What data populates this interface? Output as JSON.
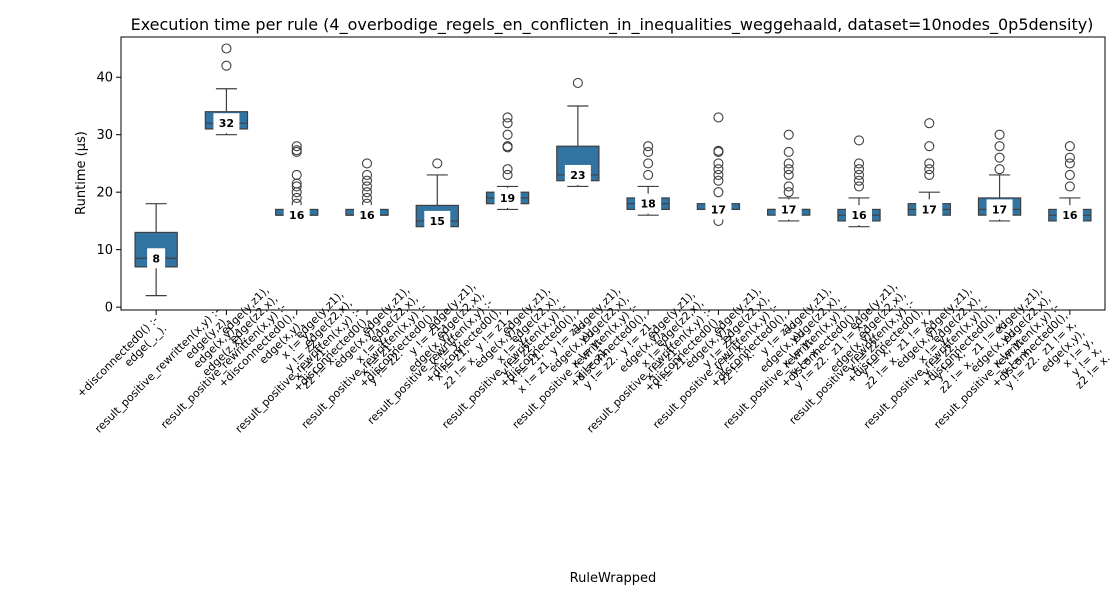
{
  "chart_data": {
    "type": "box",
    "title": "Execution time per rule (4_overbodige_regels_en_conflicten_in_inequalities_weggehaald, dataset=10nodes_0p5density)",
    "xlabel": "RuleWrapped",
    "ylabel": "Runtime (μs)",
    "ylim": [
      -0.5,
      47
    ],
    "yticks": [
      0,
      10,
      20,
      30,
      40
    ],
    "grid": false,
    "categories": [
      [
        "+disconnected0() :-",
        "edge(_,_)."
      ],
      [
        "result_positive_rewritten(x,y) :-",
        "edge(y,z),",
        "edge(x,y),",
        "edge(z,x)."
      ],
      [
        "edge(y,z1),",
        "edge(z2,x),",
        "result_positive_rewritten(x,y) :-",
        "+disconnected0(),",
        "edge(x,y),",
        "x != y,",
        "y != z2,",
        "x != z1,",
        "z2 != x."
      ],
      [
        "edge(y,z1),",
        "edge(z2,x),",
        "result_positive_rewritten(x,y) :-",
        "+disconnected0(),",
        "edge(x,y),",
        "x != y,",
        "x != z1,",
        "y != z2."
      ],
      [
        "edge(y,z1),",
        "edge(z2,x),",
        "result_positive_rewritten(x,y) :-",
        "+disconnected0(),",
        "y != z1,",
        "edge(x,y),",
        "x != y,",
        "x != z1,",
        "z2 != x."
      ],
      [
        "edge(y,z1),",
        "edge(z2,x),",
        "result_positive_rewritten(x,y) :-",
        "+disconnected0(),",
        "y != z1,",
        "edge(x,y),",
        "x != y,",
        "y != z2,",
        "x != z1,",
        "x != z1."
      ],
      [
        "edge(y,z1),",
        "edge(z2,x),",
        "result_positive_rewritten(x,y) :-",
        "+disconnected0(),",
        "y != z1,",
        "edge(x,y),",
        "x != y,",
        "x != z1,",
        "y != z2."
      ],
      [
        "edge(y,z1),",
        "edge(z2,x),",
        "result_positive_rewritten(x,y) :-",
        "+disconnected0(),",
        "y != z1,",
        "edge(x,y),",
        "x != y,",
        "x != z1,",
        "x != z1."
      ],
      [
        "edge(y,z1),",
        "edge(z2,x),",
        "result_positive_rewritten(x,y) :-",
        "+disconnected0(),",
        "edge(x,y),",
        "y != z2,",
        "y != x,",
        "z2 != x."
      ],
      [
        "edge(y,z1),",
        "edge(z2,x),",
        "result_positive_rewritten(x,y) :-",
        "+disconnected0(),",
        "y != z1,",
        "edge(x,y),",
        "x != y,",
        "y != x,",
        "y != z2."
      ],
      [
        "edge(y,z1),",
        "edge(z2,x),",
        "result_positive_rewritten(x,y) :-",
        "+disconnected0(),",
        "z1 != x,",
        "edge(x,y),",
        "y != z2,",
        "y != x,",
        "z2 != x."
      ],
      [
        "edge(y,z1),",
        "edge(z2,x),",
        "result_positive_rewritten(x,y) :-",
        "+disconnected0(),",
        "z1 != x,",
        "edge(x,y),",
        "x != y,",
        "y != z2,",
        "y != x,",
        "z2 != x."
      ],
      [
        "edge(y,z1),",
        "edge(z2,x),",
        "result_positive_rewritten(x,y) :-",
        "+disconnected0(),",
        "z1 != x,",
        "edge(x,y),",
        "x != y,",
        "y != x,",
        "y != z2."
      ],
      [
        "edge(y,z1),",
        "edge(z2,x),",
        "result_positive_rewritten(x,y) :-",
        "+disconnected0(),",
        "z1 != x,",
        "edge(x,y),",
        "x != y,",
        "y != x,",
        "z2 != x."
      ]
    ],
    "series": [
      {
        "q1": 7,
        "q3": 13,
        "median": 8.5,
        "whisker_low": 2,
        "whisker_high": 18,
        "fliers": [],
        "label": "8"
      },
      {
        "q1": 31,
        "q3": 34,
        "median": 32,
        "whisker_low": 30,
        "whisker_high": 38,
        "fliers": [
          42,
          45
        ],
        "label": "32"
      },
      {
        "q1": 16,
        "q3": 17,
        "median": 16,
        "whisker_low": 15,
        "whisker_high": 17,
        "fliers": [
          18,
          19,
          20,
          21,
          21.5,
          23,
          27,
          27.3,
          28
        ],
        "label": "16"
      },
      {
        "q1": 16,
        "q3": 17,
        "median": 16,
        "whisker_low": 15,
        "whisker_high": 17,
        "fliers": [
          18,
          19,
          20,
          21,
          22,
          23,
          25
        ],
        "label": "16"
      },
      {
        "q1": 14,
        "q3": 17.7,
        "median": 15,
        "whisker_low": 14,
        "whisker_high": 23,
        "fliers": [
          25
        ],
        "label": "15"
      },
      {
        "q1": 18,
        "q3": 20,
        "median": 19,
        "whisker_low": 17,
        "whisker_high": 21,
        "fliers": [
          23,
          24,
          27.8,
          28,
          30,
          32,
          33
        ],
        "label": "19"
      },
      {
        "q1": 22,
        "q3": 28,
        "median": 23,
        "whisker_low": 21,
        "whisker_high": 35,
        "fliers": [
          39
        ],
        "label": "23"
      },
      {
        "q1": 17,
        "q3": 19,
        "median": 18,
        "whisker_low": 16,
        "whisker_high": 21,
        "fliers": [
          23,
          25,
          27,
          28
        ],
        "label": "18"
      },
      {
        "q1": 17,
        "q3": 18,
        "median": 17,
        "whisker_low": 16,
        "whisker_high": 18,
        "fliers": [
          15,
          20,
          22,
          23,
          24,
          25,
          27,
          27.2,
          33
        ],
        "label": "17"
      },
      {
        "q1": 16,
        "q3": 17,
        "median": 17,
        "whisker_low": 15,
        "whisker_high": 19,
        "fliers": [
          20,
          21,
          23,
          24,
          25,
          27,
          30
        ],
        "label": "17"
      },
      {
        "q1": 15,
        "q3": 17,
        "median": 16,
        "whisker_low": 14,
        "whisker_high": 19,
        "fliers": [
          21,
          22,
          23,
          24,
          25,
          29
        ],
        "label": "16"
      },
      {
        "q1": 16,
        "q3": 18,
        "median": 17,
        "whisker_low": 16,
        "whisker_high": 20,
        "fliers": [
          23,
          24,
          25,
          28,
          32
        ],
        "label": "17"
      },
      {
        "q1": 16,
        "q3": 19,
        "median": 17,
        "whisker_low": 15,
        "whisker_high": 23,
        "fliers": [
          24,
          26,
          28,
          30
        ],
        "label": "17"
      },
      {
        "q1": 15,
        "q3": 17,
        "median": 16,
        "whisker_low": 15,
        "whisker_high": 19,
        "fliers": [
          21,
          23,
          25,
          26,
          28
        ],
        "label": "16"
      }
    ],
    "colors": {
      "box": "#3274a1",
      "line": "#3f3f3f"
    }
  }
}
